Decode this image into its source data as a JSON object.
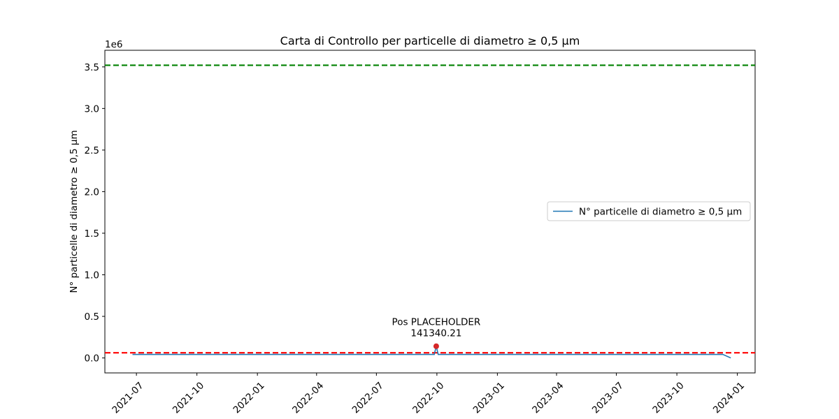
{
  "chart_data": {
    "type": "line",
    "title": "Carta di Controllo per particelle di diametro ≥ 0,5 µm",
    "xlabel": "",
    "ylabel": "N° particelle di diametro ≥ 0,5 µm",
    "y_scale_label": "1e6",
    "ylim": [
      -180000,
      3700000
    ],
    "xlim": [
      "2021-05-14",
      "2024-01-28"
    ],
    "y_ticks": [
      0,
      500000,
      1000000,
      1500000,
      2000000,
      2500000,
      3000000,
      3500000
    ],
    "y_tick_labels": [
      "0.0",
      "0.5",
      "1.0",
      "1.5",
      "2.0",
      "2.5",
      "3.0",
      "3.5"
    ],
    "x_ticks": [
      "2021-07-01",
      "2021-10-01",
      "2022-01-01",
      "2022-04-01",
      "2022-07-01",
      "2022-10-01",
      "2023-01-01",
      "2023-04-01",
      "2023-07-01",
      "2023-10-01",
      "2024-01-01"
    ],
    "x_tick_labels": [
      "2021-07",
      "2021-10",
      "2022-01",
      "2022-04",
      "2022-07",
      "2022-10",
      "2023-01",
      "2023-04",
      "2023-07",
      "2023-10",
      "2024-01"
    ],
    "series": [
      {
        "name": "N° particelle di diametro ≥ 0,5 µm",
        "color": "#1f77b4",
        "x": [
          "2021-06-25",
          "2022-09-27",
          "2022-09-30",
          "2022-10-03",
          "2023-12-10",
          "2023-12-22"
        ],
        "values": [
          42000,
          42000,
          141340.21,
          42000,
          42000,
          0
        ]
      }
    ],
    "reference_lines": [
      {
        "label": "upper",
        "value": 3520000,
        "color": "#008000",
        "style": "dashed"
      },
      {
        "label": "lower",
        "value": 62000,
        "color": "#ff0000",
        "style": "dashed"
      }
    ],
    "highlight_point": {
      "x": "2022-09-30",
      "value": 141340.21,
      "color": "#d62728",
      "label_line1": "Pos PLACEHOLDER",
      "label_line2": "141340.21"
    },
    "legend": {
      "position": "center-right",
      "entries": [
        "N° particelle di diametro ≥ 0,5 µm"
      ]
    }
  }
}
